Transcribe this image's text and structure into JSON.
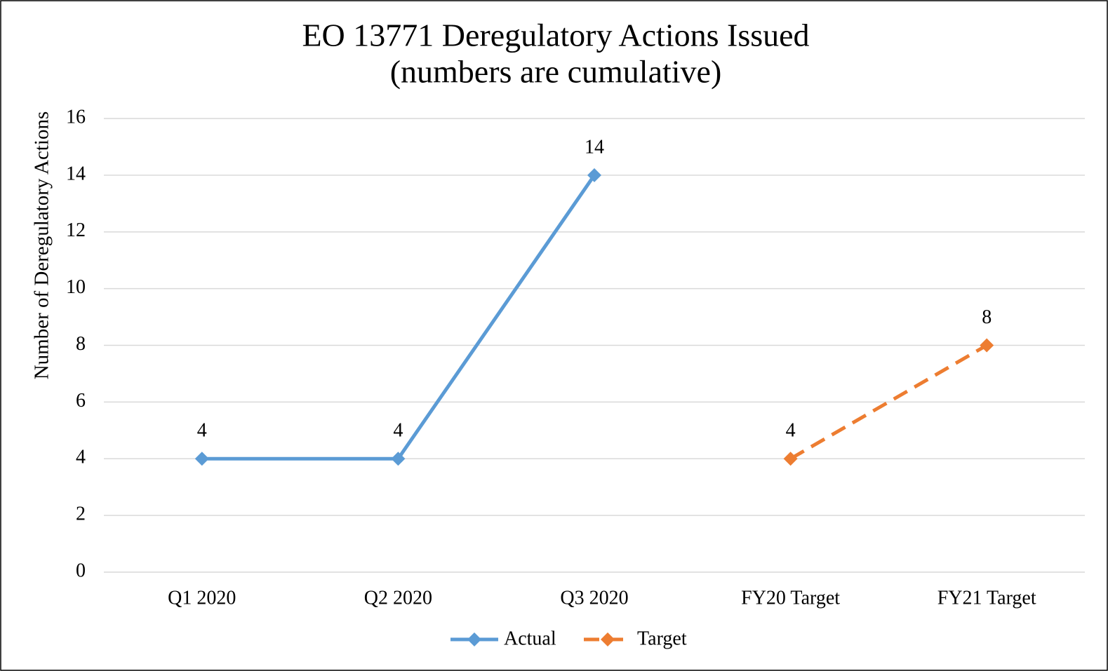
{
  "chart_data": {
    "type": "line",
    "title": [
      "EO 13771 Deregulatory Actions Issued",
      "(numbers are cumulative)"
    ],
    "y_label": "Number of Deregulatory Actions",
    "categories": [
      "Q1 2020",
      "Q2 2020",
      "Q3 2020",
      "FY20 Target",
      "FY21 Target"
    ],
    "series": [
      {
        "name": "Actual",
        "color": "#5b9bd5",
        "dash": false,
        "values": [
          4,
          4,
          14,
          null,
          null
        ]
      },
      {
        "name": "Target",
        "color": "#ed7d31",
        "dash": true,
        "values": [
          null,
          null,
          null,
          4,
          8
        ]
      }
    ],
    "ylim": [
      0,
      16
    ],
    "yticks": [
      0,
      2,
      4,
      6,
      8,
      10,
      12,
      14,
      16
    ],
    "grid": true,
    "data_labels": true,
    "legend": "bottom"
  }
}
